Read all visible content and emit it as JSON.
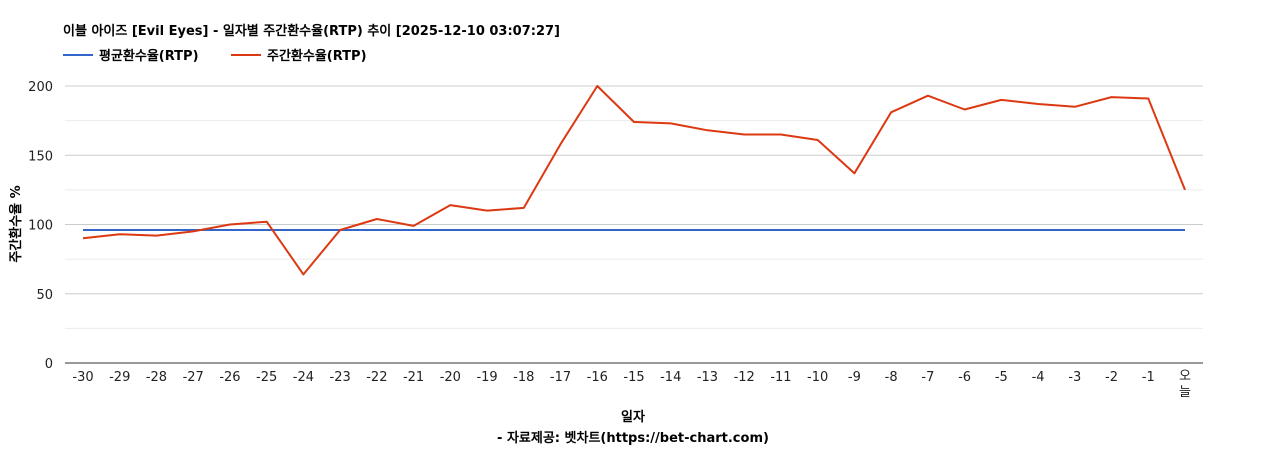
{
  "chart_data": {
    "type": "line",
    "title": "이블 아이즈 [Evil Eyes] - 일자별 주간환수율(RTP) 추이 [2025-12-10 03:07:27]",
    "xlabel": "일자",
    "ylabel": "주간환수율 %",
    "credit": "- 자료제공: 벳차트(https://bet-chart.com)",
    "categories": [
      "-30",
      "-29",
      "-28",
      "-27",
      "-26",
      "-25",
      "-24",
      "-23",
      "-22",
      "-21",
      "-20",
      "-19",
      "-18",
      "-17",
      "-16",
      "-15",
      "-14",
      "-13",
      "-12",
      "-11",
      "-10",
      "-9",
      "-8",
      "-7",
      "-6",
      "-5",
      "-4",
      "-3",
      "-2",
      "-1",
      "오늘"
    ],
    "ylim": [
      0,
      200
    ],
    "yticks": [
      0,
      50,
      100,
      150,
      200
    ],
    "grid": true,
    "legend_position": "top-left",
    "series": [
      {
        "name": "평균환수율(RTP)",
        "color": "#3366cc",
        "values": [
          96,
          96,
          96,
          96,
          96,
          96,
          96,
          96,
          96,
          96,
          96,
          96,
          96,
          96,
          96,
          96,
          96,
          96,
          96,
          96,
          96,
          96,
          96,
          96,
          96,
          96,
          96,
          96,
          96,
          96,
          96
        ]
      },
      {
        "name": "주간환수율(RTP)",
        "color": "#dc3912",
        "values": [
          90,
          93,
          92,
          95,
          100,
          102,
          64,
          96,
          104,
          99,
          114,
          110,
          112,
          158,
          200,
          174,
          173,
          168,
          165,
          165,
          161,
          137,
          181,
          193,
          183,
          190,
          187,
          185,
          192,
          191,
          125
        ]
      }
    ]
  }
}
